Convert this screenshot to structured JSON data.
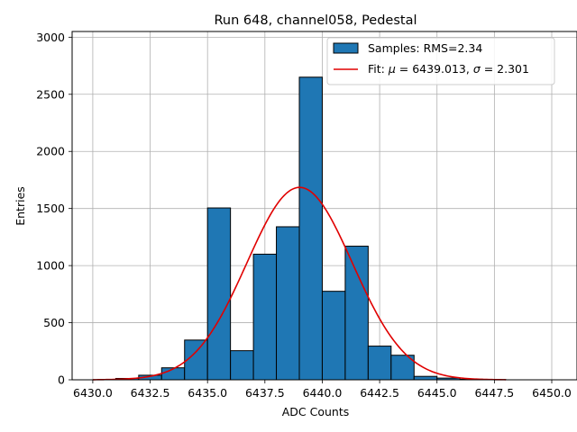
{
  "chart_data": {
    "type": "bar",
    "title": "Run 648, channel058, Pedestal",
    "xlabel": "ADC Counts",
    "ylabel": "Entries",
    "xlim": [
      6429.1,
      6451.1
    ],
    "ylim": [
      0,
      3050
    ],
    "xticks": [
      6430.0,
      6432.5,
      6435.0,
      6437.5,
      6440.0,
      6442.5,
      6445.0,
      6447.5,
      6450.0
    ],
    "xtick_labels": [
      "6430.0",
      "6432.5",
      "6435.0",
      "6437.5",
      "6440.0",
      "6442.5",
      "6445.0",
      "6447.5",
      "6450.0"
    ],
    "yticks": [
      0,
      500,
      1000,
      1500,
      2000,
      2500,
      3000
    ],
    "ytick_labels": [
      "0",
      "500",
      "1000",
      "1500",
      "2000",
      "2500",
      "3000"
    ],
    "grid": true,
    "legend_position": "top-right",
    "histogram": {
      "name": "Samples: RMS=2.34",
      "color": "#1f77b4",
      "edge_color": "#000000",
      "bin_edges": [
        6431,
        6432,
        6433,
        6434,
        6435,
        6436,
        6437,
        6438,
        6439,
        6440,
        6441,
        6442,
        6443,
        6444,
        6445,
        6446,
        6447,
        6448
      ],
      "counts": [
        12,
        40,
        105,
        348,
        1505,
        255,
        1100,
        1340,
        2650,
        775,
        1170,
        295,
        215,
        30,
        15,
        5,
        2
      ]
    },
    "fit": {
      "name": "Fit: μ = 6439.013, σ = 2.301",
      "legend_text_prefix": "Fit: ",
      "legend_mu_symbol": "μ",
      "legend_mu_value": " = 6439.013, ",
      "legend_sigma_symbol": "σ",
      "legend_sigma_value": " = 2.301",
      "color": "#e00000",
      "mu": 6439.013,
      "sigma": 2.301,
      "amplitude": 1685,
      "x_range": [
        6430,
        6448
      ]
    }
  }
}
